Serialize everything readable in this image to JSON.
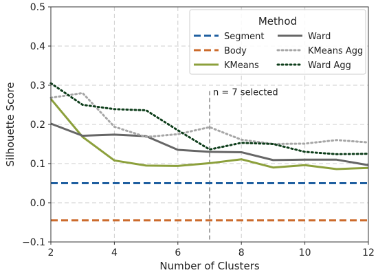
{
  "chart_data": {
    "type": "line",
    "xlabel": "Number of Clusters",
    "ylabel": "Silhouette Score",
    "xlim": [
      2,
      12
    ],
    "ylim": [
      -0.1,
      0.5
    ],
    "xticks": [
      "2",
      "4",
      "6",
      "8",
      "10",
      "12"
    ],
    "yticks": [
      "−0.1",
      "0.0",
      "0.1",
      "0.2",
      "0.3",
      "0.4",
      "0.5"
    ],
    "grid": true,
    "legend": {
      "title": "Method",
      "placement": "top-right",
      "columns": 2
    },
    "annotation": {
      "x": 7,
      "text": "n = 7 selected"
    },
    "series": [
      {
        "name": "Segment",
        "color": "#1f5fa0",
        "style": "dashed",
        "x": [
          2,
          12
        ],
        "values": [
          0.05,
          0.05
        ]
      },
      {
        "name": "Body",
        "color": "#cc6b2c",
        "style": "dashed",
        "x": [
          2,
          12
        ],
        "values": [
          -0.045,
          -0.045
        ]
      },
      {
        "name": "KMeans",
        "color": "#8ca03c",
        "style": "solid",
        "x": [
          2,
          3,
          4,
          5,
          6,
          7,
          8,
          9,
          10,
          11,
          12
        ],
        "values": [
          0.265,
          0.168,
          0.108,
          0.095,
          0.094,
          0.101,
          0.111,
          0.09,
          0.096,
          0.086,
          0.089
        ]
      },
      {
        "name": "Ward",
        "color": "#666666",
        "style": "solid",
        "x": [
          2,
          3,
          4,
          5,
          6,
          7,
          8,
          9,
          10,
          11,
          12
        ],
        "values": [
          0.202,
          0.171,
          0.174,
          0.17,
          0.135,
          0.13,
          0.129,
          0.109,
          0.11,
          0.11,
          0.096
        ]
      },
      {
        "name": "KMeans Agg",
        "color": "#a6a6a6",
        "style": "dotted",
        "x": [
          2,
          3,
          4,
          5,
          6,
          7,
          8,
          9,
          10,
          11,
          12
        ],
        "values": [
          0.268,
          0.28,
          0.194,
          0.168,
          0.175,
          0.193,
          0.161,
          0.15,
          0.151,
          0.16,
          0.154
        ]
      },
      {
        "name": "Ward Agg",
        "color": "#0d3d1a",
        "style": "dotted",
        "x": [
          2,
          3,
          4,
          5,
          6,
          7,
          8,
          9,
          10,
          11,
          12
        ],
        "values": [
          0.305,
          0.25,
          0.239,
          0.236,
          0.185,
          0.136,
          0.153,
          0.15,
          0.13,
          0.124,
          0.125
        ]
      }
    ]
  }
}
